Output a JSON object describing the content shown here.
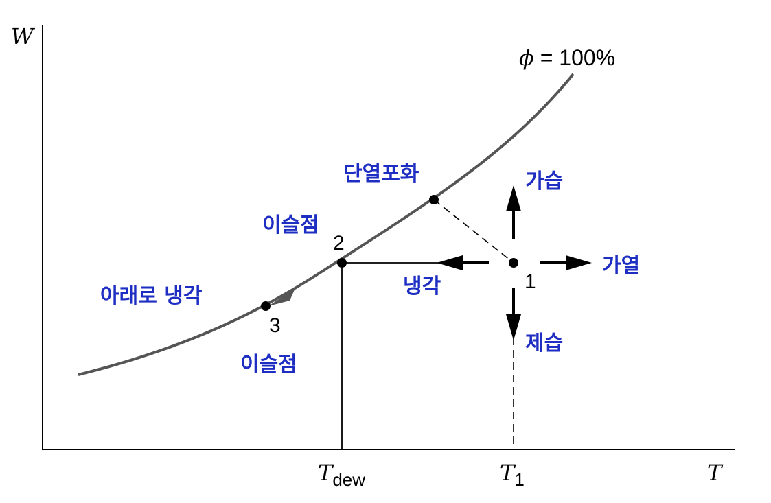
{
  "axes": {
    "y_label": "W",
    "x_label": "T"
  },
  "curve": {
    "symbol": "ϕ",
    "label": " = 100%"
  },
  "ticks": {
    "t_dew": {
      "main": "T",
      "sub": "dew"
    },
    "t_1": {
      "main": "T",
      "sub": "1"
    }
  },
  "points": {
    "p1": "1",
    "p2": "2",
    "p3": "3"
  },
  "labels": {
    "adiabatic_saturation": "단열포화",
    "dew_point_upper": "이슬점",
    "dew_point_lower": "이슬점",
    "cooling_below": "아래로 냉각",
    "humidify": "가습",
    "heating": "가열",
    "cooling": "냉각",
    "dehumidify": "제습"
  },
  "colors": {
    "korean_label": "#1f2ec2",
    "curve": "#555555",
    "lines": "#000000"
  }
}
